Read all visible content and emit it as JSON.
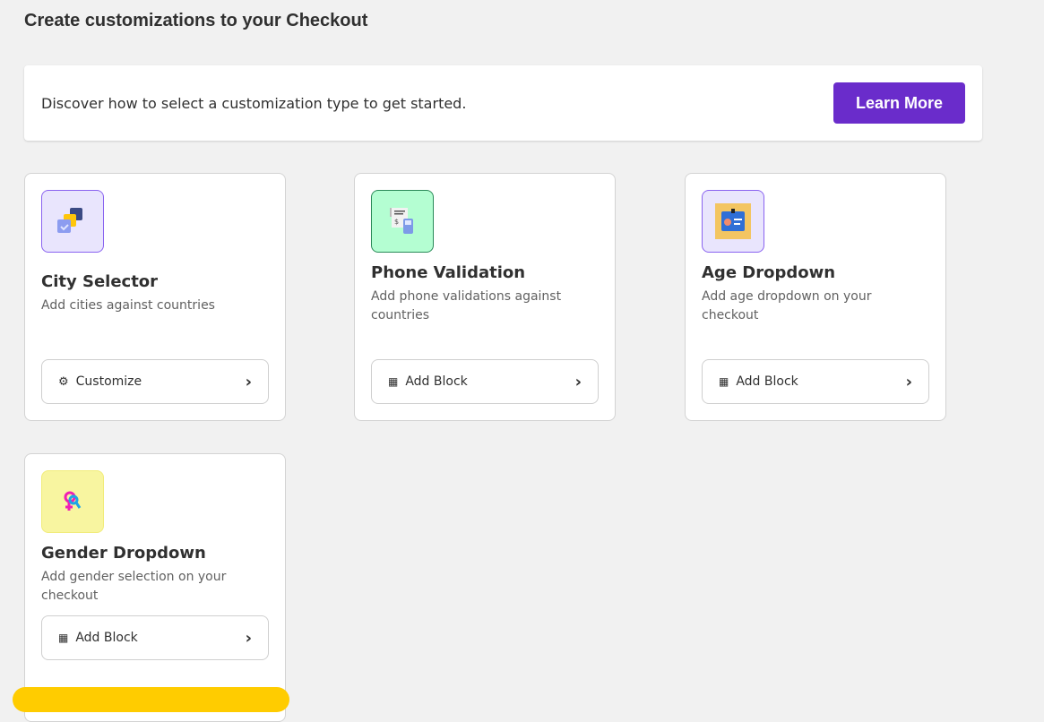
{
  "page_title": "Create customizations to your Checkout",
  "banner": {
    "text": "Discover how to select a customization type to get started.",
    "button": "Learn More",
    "accent": "#6a2ccb"
  },
  "cards": [
    {
      "title": "City Selector",
      "description": "Add cities against countries",
      "button": "Customize",
      "icon": "layers-check-icon",
      "button_icon": "gears-icon"
    },
    {
      "title": "Phone Validation",
      "description": "Add phone validations against countries",
      "button": "Add Block",
      "icon": "phone-receipt-icon",
      "button_icon": "add-block-icon"
    },
    {
      "title": "Age Dropdown",
      "description": "Add age dropdown on your checkout",
      "button": "Add Block",
      "icon": "id-card-icon",
      "button_icon": "add-block-icon"
    },
    {
      "title": "Gender Dropdown",
      "description": "Add gender selection on your checkout",
      "button": "Add Block",
      "icon": "gender-icon",
      "button_icon": "add-block-icon"
    }
  ]
}
